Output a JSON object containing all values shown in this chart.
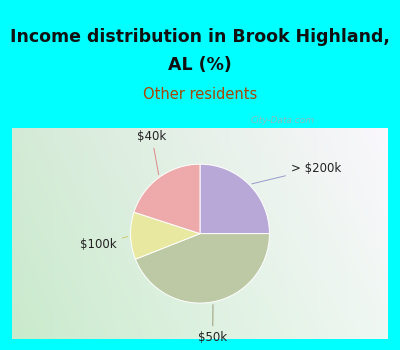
{
  "title_line1": "Income distribution in Brook Highland,",
  "title_line2": "AL (%)",
  "subtitle": "Other residents",
  "title_color": "#111111",
  "subtitle_color": "#aa4400",
  "top_bg_color": "#00ffff",
  "watermark": "City-Data.com",
  "slices": [
    {
      "label": "> $200k",
      "value": 25,
      "color": "#b8a8d8"
    },
    {
      "label": "$50k",
      "value": 44,
      "color": "#bdc9a5"
    },
    {
      "label": "$100k",
      "value": 11,
      "color": "#e8e8a0"
    },
    {
      "label": "$40k",
      "value": 20,
      "color": "#eeaaaa"
    }
  ],
  "label_color": "#222222",
  "label_fontsize": 8.5,
  "title_fontsize1": 12.5,
  "title_fontsize2": 12.5,
  "subtitle_fontsize": 10.5,
  "watermark_color": "#aaaaaa",
  "line_colors": [
    "#9999cc",
    "#999977",
    "#cccc66",
    "#dd8888"
  ]
}
